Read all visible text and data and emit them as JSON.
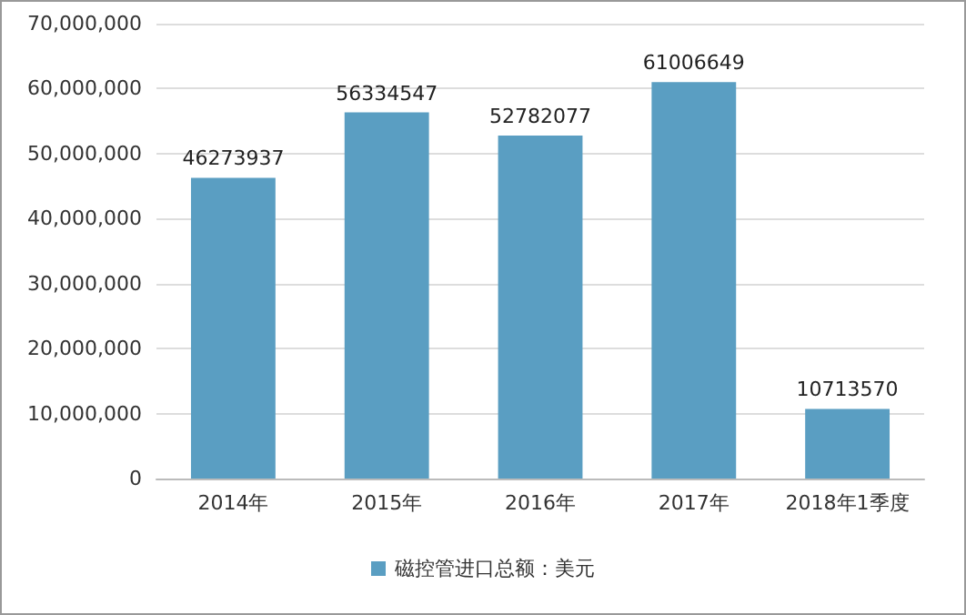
{
  "chart_data": {
    "type": "bar",
    "categories": [
      "2014年",
      "2015年",
      "2016年",
      "2017年",
      "2018年1季度"
    ],
    "series": [
      {
        "name": "磁控管进口总额：美元",
        "color": "#5a9ec2",
        "values": [
          46273937,
          56334547,
          52782077,
          61006649,
          10713570
        ]
      }
    ],
    "ylim": [
      0,
      70000000
    ],
    "yticks": [
      0,
      {
        "value": 10000000,
        "label": "10,000,000"
      },
      {
        "value": 20000000,
        "label": "20,000,000"
      },
      {
        "value": 30000000,
        "label": "30,000,000"
      },
      {
        "value": 40000000,
        "label": "40,000,000"
      },
      {
        "value": 50000000,
        "label": "50,000,000"
      },
      {
        "value": 60000000,
        "label": "60,000,000"
      },
      {
        "value": 70000000,
        "label": "70,000,000"
      }
    ],
    "grid": "y",
    "legend": "bottom",
    "data_labels": true
  }
}
